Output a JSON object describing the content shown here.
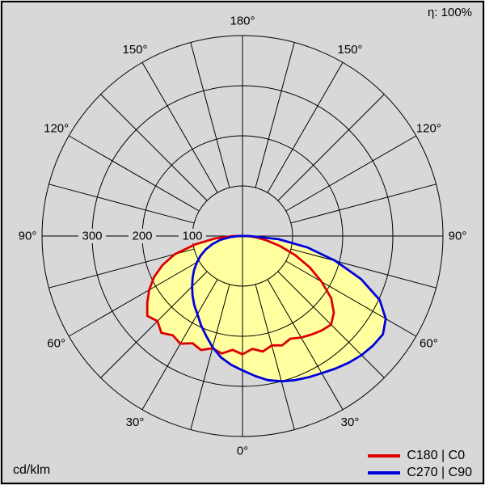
{
  "colors": {
    "background": "#d8d8d8",
    "grid": "#000000",
    "text": "#000000"
  },
  "header": {
    "efficiency_label": "η: 100%"
  },
  "footer": {
    "unit_label": "cd/klm"
  },
  "legend": {
    "items": [
      {
        "label": "C180 | C0",
        "color": "#dd0000"
      },
      {
        "label": "C270 | C90",
        "color": "#0000dd"
      }
    ]
  },
  "chart_data": {
    "type": "polar_line",
    "description": "Polar luminous intensity distribution curve, gamma 0° at nadir (bottom), values in cd/klm",
    "unit": "cd/klm",
    "radial_ticks": [
      100,
      200,
      300
    ],
    "radial_max": 400,
    "spoke_step_deg": 15,
    "angle_label_step_deg": 30,
    "angle_labels_deg": [
      0,
      30,
      60,
      90,
      120,
      150,
      180
    ],
    "efficiency_percent": 100,
    "fill_color": "#ffffa0",
    "grid": true,
    "legend_position": "bottom-right",
    "series": [
      {
        "name": "C180 | C0",
        "color": "#dd0000",
        "points": [
          [
            -90,
            18
          ],
          [
            -85,
            55
          ],
          [
            -80,
            95
          ],
          [
            -75,
            140
          ],
          [
            -70,
            170
          ],
          [
            -65,
            195
          ],
          [
            -60,
            215
          ],
          [
            -55,
            232
          ],
          [
            -50,
            248
          ],
          [
            -45,
            240
          ],
          [
            -40,
            252
          ],
          [
            -35,
            242
          ],
          [
            -30,
            248
          ],
          [
            -25,
            236
          ],
          [
            -20,
            242
          ],
          [
            -15,
            232
          ],
          [
            -10,
            238
          ],
          [
            -5,
            228
          ],
          [
            0,
            236
          ],
          [
            5,
            226
          ],
          [
            10,
            234
          ],
          [
            15,
            226
          ],
          [
            20,
            232
          ],
          [
            25,
            226
          ],
          [
            30,
            234
          ],
          [
            35,
            240
          ],
          [
            40,
            246
          ],
          [
            45,
            250
          ],
          [
            50,
            238
          ],
          [
            55,
            216
          ],
          [
            60,
            182
          ],
          [
            65,
            148
          ],
          [
            70,
            112
          ],
          [
            75,
            78
          ],
          [
            80,
            48
          ],
          [
            85,
            26
          ],
          [
            90,
            10
          ]
        ]
      },
      {
        "name": "C270 | C90",
        "color": "#0000dd",
        "points": [
          [
            -90,
            8
          ],
          [
            -85,
            25
          ],
          [
            -80,
            45
          ],
          [
            -75,
            62
          ],
          [
            -70,
            78
          ],
          [
            -65,
            92
          ],
          [
            -60,
            105
          ],
          [
            -55,
            118
          ],
          [
            -50,
            130
          ],
          [
            -45,
            142
          ],
          [
            -40,
            155
          ],
          [
            -35,
            168
          ],
          [
            -30,
            180
          ],
          [
            -25,
            196
          ],
          [
            -20,
            212
          ],
          [
            -15,
            230
          ],
          [
            -10,
            246
          ],
          [
            -5,
            258
          ],
          [
            0,
            268
          ],
          [
            5,
            280
          ],
          [
            10,
            292
          ],
          [
            15,
            300
          ],
          [
            20,
            306
          ],
          [
            25,
            311
          ],
          [
            30,
            316
          ],
          [
            35,
            323
          ],
          [
            40,
            330
          ],
          [
            45,
            336
          ],
          [
            50,
            340
          ],
          [
            55,
            342
          ],
          [
            60,
            330
          ],
          [
            65,
            302
          ],
          [
            70,
            252
          ],
          [
            75,
            192
          ],
          [
            80,
            132
          ],
          [
            85,
            72
          ],
          [
            90,
            14
          ]
        ]
      }
    ]
  }
}
